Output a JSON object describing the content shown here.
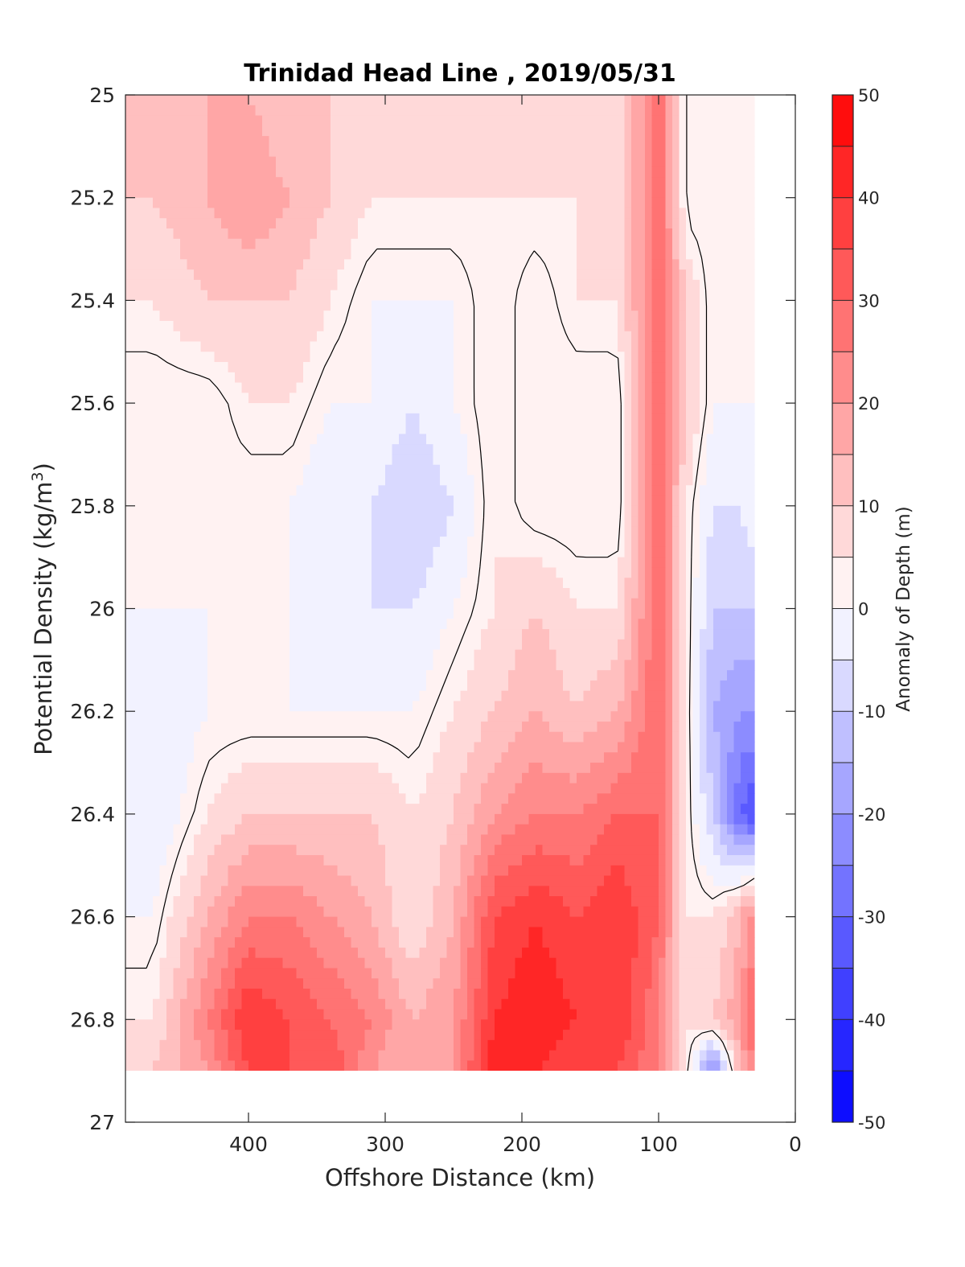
{
  "chart_data": {
    "type": "heatmap",
    "subtype": "filled-contour",
    "title": "Trinidad Head Line , 2019/05/31",
    "xlabel": "Offshore Distance (km)",
    "ylabel_main": "Potential Density (kg/m",
    "ylabel_sup": "3",
    "ylabel_close": ")",
    "xlim": [
      490,
      0
    ],
    "x_reversed": true,
    "ylim": [
      25,
      27
    ],
    "y_reversed": true,
    "xticks": [
      "400",
      "300",
      "200",
      "100",
      "0"
    ],
    "xtick_values": [
      400,
      300,
      200,
      100,
      0
    ],
    "yticks": [
      "25",
      "25.2",
      "25.4",
      "25.6",
      "25.8",
      "26",
      "26.2",
      "26.4",
      "26.6",
      "26.8",
      "27"
    ],
    "ytick_values": [
      25,
      25.2,
      25.4,
      25.6,
      25.8,
      26,
      26.2,
      26.4,
      26.6,
      26.8,
      27
    ],
    "colorbar": {
      "label": "Anomaly of Depth (m)",
      "range": [
        -50,
        50
      ],
      "step": 5,
      "ticks": [
        "50",
        "40",
        "30",
        "20",
        "10",
        "0",
        "-10",
        "-20",
        "-30",
        "-40",
        "-50"
      ],
      "tick_values": [
        50,
        40,
        30,
        20,
        10,
        0,
        -10,
        -20,
        -30,
        -40,
        -50
      ],
      "colormap": "blue-white-red",
      "min_color": "#0000ff",
      "max_color": "#ff0000",
      "zero_color": "#ffffff"
    },
    "data_extent": {
      "x": [
        490,
        30
      ],
      "y": [
        25,
        26.9
      ]
    },
    "zero_contour_line": true,
    "grid": false,
    "features": [
      {
        "label": "strong positive anomaly",
        "x": 100,
        "y": [
          25.0,
          26.3
        ],
        "value": 30
      },
      {
        "label": "deep positive anomaly core",
        "x": [
          410,
          330
        ],
        "y": [
          26.6,
          26.8
        ],
        "value": 40
      },
      {
        "label": "deep positive anomaly core",
        "x": [
          230,
          120
        ],
        "y": [
          26.6,
          26.9
        ],
        "value": 45
      },
      {
        "label": "nearshore negative anomaly",
        "x": 30,
        "y": 26.4,
        "value": -35
      },
      {
        "label": "negative anomaly",
        "x": [
          330,
          290
        ],
        "y": [
          25.4,
          26.1
        ],
        "value": -10
      },
      {
        "label": "small negative anomaly",
        "x": 65,
        "y": 26.8,
        "value": -25
      }
    ],
    "samples": [
      {
        "x": 470,
        "y": [
          10,
          10,
          5,
          0,
          0,
          0,
          -5,
          -5,
          0,
          5,
          10
        ]
      },
      {
        "x": 430,
        "y": [
          15,
          15,
          10,
          0,
          0,
          0,
          0,
          5,
          15,
          25,
          20
        ]
      },
      {
        "x": 400,
        "y": [
          15,
          20,
          10,
          5,
          0,
          0,
          0,
          10,
          25,
          40,
          35
        ]
      },
      {
        "x": 370,
        "y": [
          10,
          15,
          10,
          5,
          0,
          0,
          0,
          10,
          25,
          35,
          35
        ]
      },
      {
        "x": 340,
        "y": [
          10,
          10,
          5,
          0,
          -5,
          -5,
          0,
          10,
          20,
          30,
          35
        ]
      },
      {
        "x": 310,
        "y": [
          5,
          5,
          0,
          0,
          -5,
          -5,
          0,
          10,
          15,
          25,
          20
        ]
      },
      {
        "x": 280,
        "y": [
          5,
          5,
          0,
          -5,
          -10,
          -5,
          0,
          5,
          5,
          15,
          15
        ]
      },
      {
        "x": 250,
        "y": [
          10,
          5,
          0,
          0,
          -5,
          0,
          5,
          10,
          15,
          20,
          20
        ]
      },
      {
        "x": 220,
        "y": [
          5,
          5,
          5,
          5,
          5,
          5,
          10,
          20,
          35,
          40,
          45
        ]
      },
      {
        "x": 190,
        "y": [
          10,
          5,
          0,
          0,
          0,
          10,
          15,
          25,
          40,
          45,
          40
        ]
      },
      {
        "x": 160,
        "y": [
          5,
          5,
          5,
          0,
          0,
          5,
          10,
          25,
          35,
          40,
          35
        ]
      },
      {
        "x": 130,
        "y": [
          5,
          5,
          5,
          0,
          0,
          5,
          15,
          30,
          40,
          40,
          35
        ]
      },
      {
        "x": 100,
        "y": [
          30,
          30,
          30,
          30,
          30,
          30,
          30,
          30,
          30,
          25,
          25
        ]
      },
      {
        "x": 80,
        "y": [
          0,
          0,
          10,
          10,
          5,
          5,
          5,
          5,
          5,
          5,
          5
        ]
      },
      {
        "x": 60,
        "y": [
          0,
          0,
          0,
          0,
          -5,
          -10,
          -15,
          -10,
          5,
          10,
          -25
        ]
      },
      {
        "x": 40,
        "y": [
          0,
          0,
          0,
          0,
          -5,
          -10,
          -20,
          -30,
          15,
          20,
          15
        ]
      },
      {
        "x": 30,
        "y": [
          0,
          0,
          0,
          0,
          0,
          -10,
          -20,
          -35,
          25,
          30,
          25
        ]
      }
    ],
    "sample_y": [
      25.0,
      25.2,
      25.4,
      25.6,
      25.8,
      26.0,
      26.2,
      26.4,
      26.6,
      26.8,
      26.9
    ]
  }
}
